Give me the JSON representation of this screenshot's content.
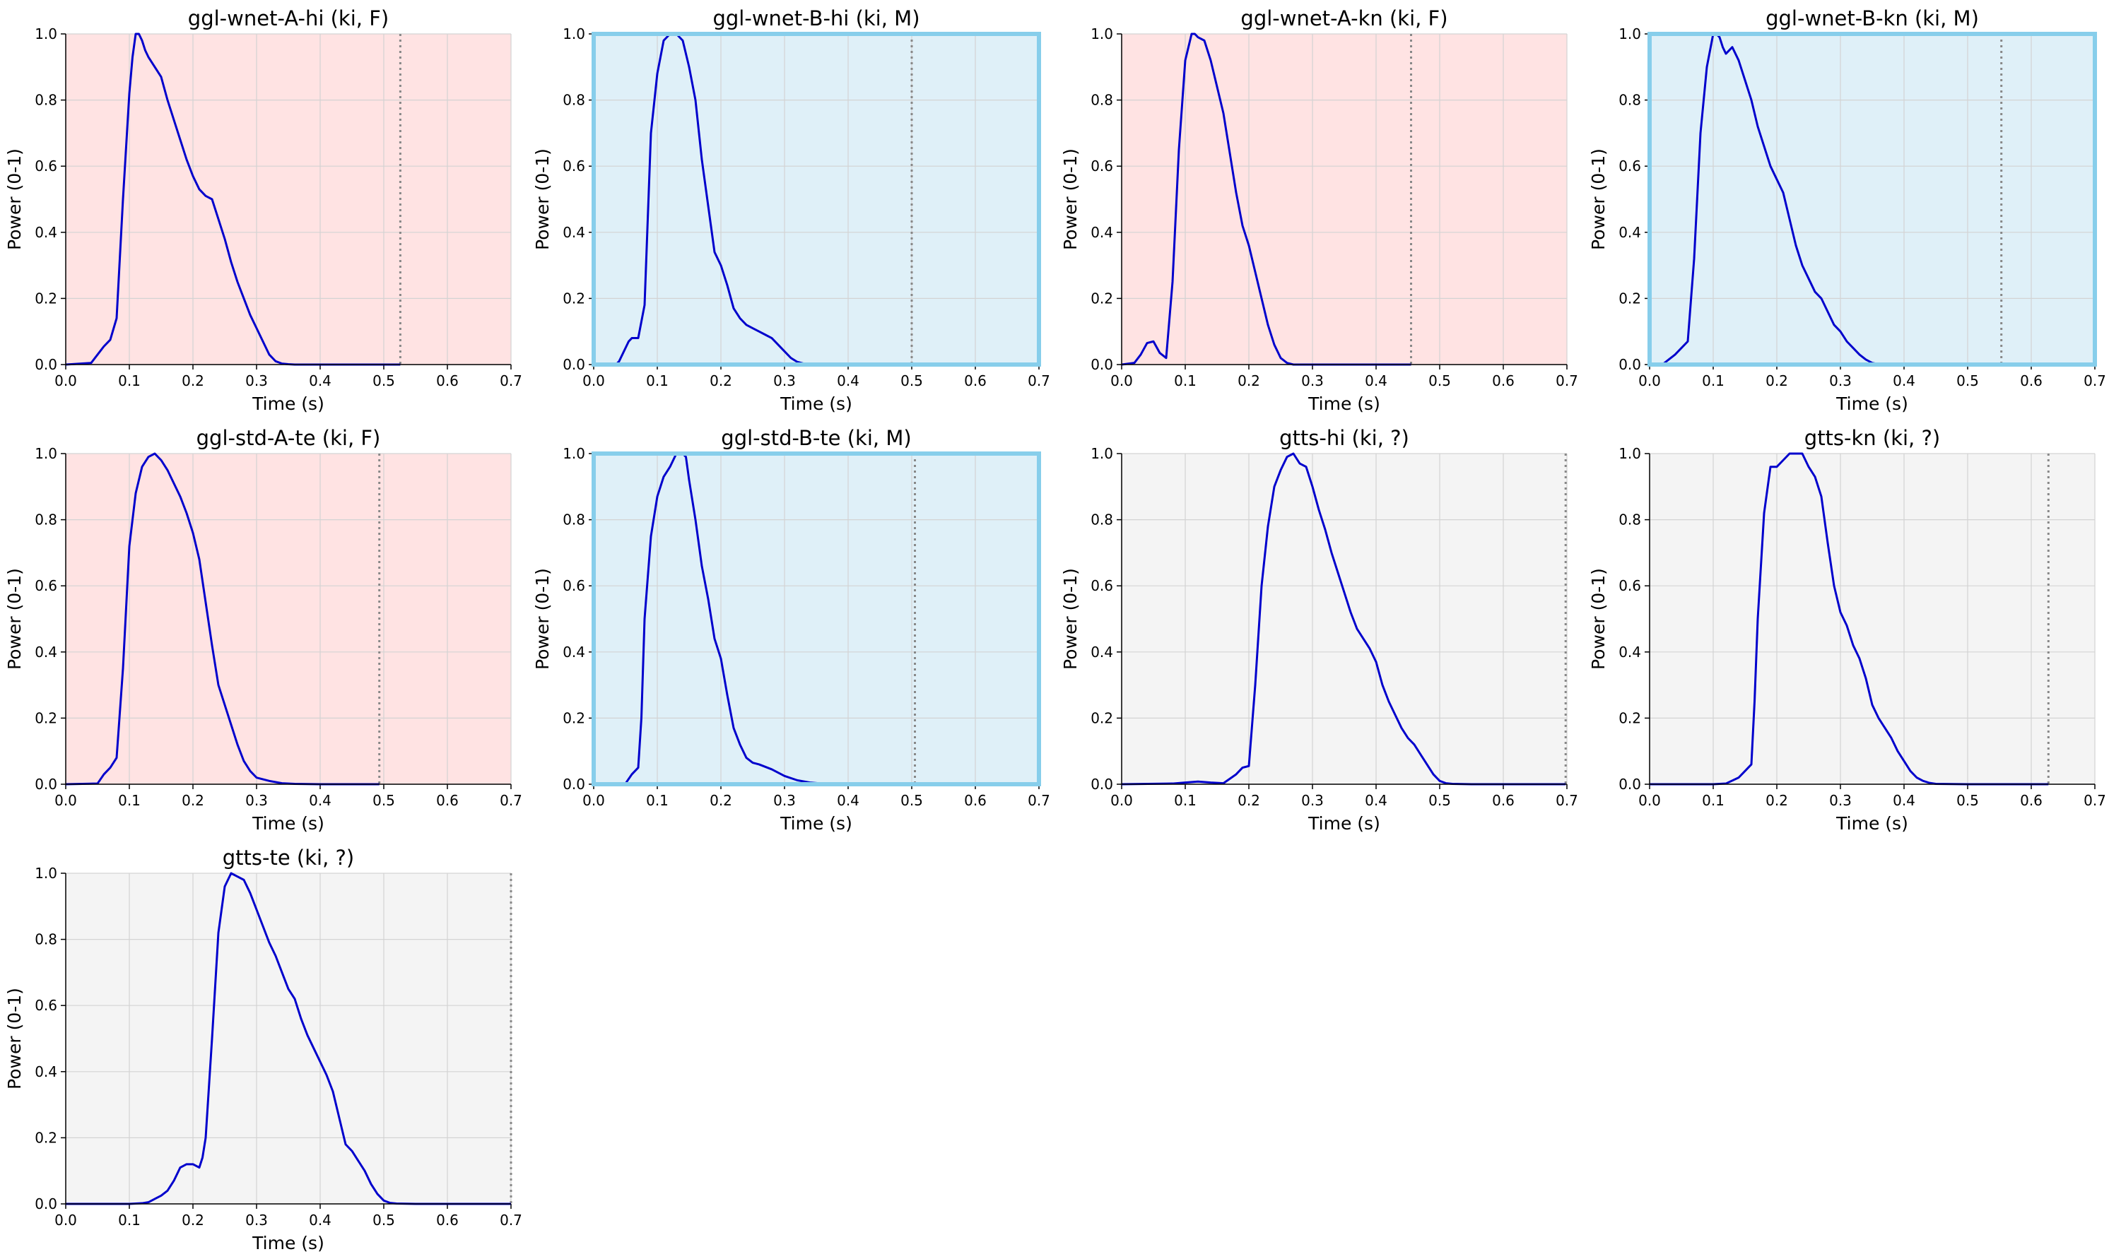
{
  "chart_data": [
    {
      "type": "line",
      "title": "ggl-wnet-A-hi (ki, F)",
      "xlabel": "Time (s)",
      "ylabel": "Power (0-1)",
      "xlim": [
        0,
        0.7
      ],
      "ylim": [
        0,
        1
      ],
      "xticks": [
        "0.0",
        "0.1",
        "0.2",
        "0.3",
        "0.4",
        "0.5",
        "0.6",
        "0.7"
      ],
      "yticks": [
        "0.0",
        "0.2",
        "0.4",
        "0.6",
        "0.8",
        "1.0"
      ],
      "grid": true,
      "background": "#ffe3e3",
      "highlighted": false,
      "end_marker": 0.526,
      "series": [
        {
          "color": "#0000cc",
          "x": [
            0,
            0.04,
            0.05,
            0.06,
            0.07,
            0.08,
            0.09,
            0.1,
            0.105,
            0.11,
            0.115,
            0.12,
            0.125,
            0.13,
            0.14,
            0.15,
            0.16,
            0.17,
            0.18,
            0.19,
            0.2,
            0.21,
            0.22,
            0.23,
            0.24,
            0.25,
            0.26,
            0.27,
            0.28,
            0.29,
            0.3,
            0.31,
            0.32,
            0.33,
            0.34,
            0.35,
            0.36,
            0.38,
            0.4,
            0.45,
            0.526
          ],
          "y": [
            0,
            0.005,
            0.03,
            0.055,
            0.075,
            0.14,
            0.5,
            0.82,
            0.93,
            1.0,
            1.0,
            0.98,
            0.95,
            0.93,
            0.9,
            0.87,
            0.8,
            0.74,
            0.68,
            0.62,
            0.57,
            0.53,
            0.51,
            0.5,
            0.44,
            0.38,
            0.31,
            0.25,
            0.2,
            0.15,
            0.11,
            0.07,
            0.03,
            0.01,
            0.003,
            0.001,
            0,
            0,
            0,
            0,
            0
          ]
        }
      ]
    },
    {
      "type": "line",
      "title": "ggl-wnet-B-hi (ki, M)",
      "xlabel": "Time (s)",
      "ylabel": "Power (0-1)",
      "xlim": [
        0,
        0.7
      ],
      "ylim": [
        0,
        1
      ],
      "xticks": [
        "0.0",
        "0.1",
        "0.2",
        "0.3",
        "0.4",
        "0.5",
        "0.6",
        "0.7"
      ],
      "yticks": [
        "0.0",
        "0.2",
        "0.4",
        "0.6",
        "0.8",
        "1.0"
      ],
      "grid": true,
      "background": "#dff0f8",
      "highlighted": true,
      "end_marker": 0.5,
      "series": [
        {
          "color": "#0000cc",
          "x": [
            0,
            0.035,
            0.04,
            0.05,
            0.055,
            0.06,
            0.07,
            0.08,
            0.09,
            0.1,
            0.11,
            0.12,
            0.13,
            0.14,
            0.15,
            0.16,
            0.17,
            0.18,
            0.19,
            0.2,
            0.21,
            0.22,
            0.23,
            0.24,
            0.25,
            0.26,
            0.27,
            0.28,
            0.29,
            0.3,
            0.31,
            0.32,
            0.33,
            0.34,
            0.35,
            0.4,
            0.45,
            0.5
          ],
          "y": [
            0,
            0,
            0.01,
            0.05,
            0.07,
            0.08,
            0.08,
            0.18,
            0.7,
            0.88,
            0.98,
            1.0,
            1.0,
            0.98,
            0.9,
            0.8,
            0.62,
            0.48,
            0.34,
            0.3,
            0.24,
            0.17,
            0.14,
            0.12,
            0.11,
            0.1,
            0.09,
            0.08,
            0.06,
            0.04,
            0.02,
            0.008,
            0.003,
            0.001,
            0,
            0,
            0,
            0
          ]
        }
      ]
    },
    {
      "type": "line",
      "title": "ggl-wnet-A-kn (ki, F)",
      "xlabel": "Time (s)",
      "ylabel": "Power (0-1)",
      "xlim": [
        0,
        0.7
      ],
      "ylim": [
        0,
        1
      ],
      "xticks": [
        "0.0",
        "0.1",
        "0.2",
        "0.3",
        "0.4",
        "0.5",
        "0.6",
        "0.7"
      ],
      "yticks": [
        "0.0",
        "0.2",
        "0.4",
        "0.6",
        "0.8",
        "1.0"
      ],
      "grid": true,
      "background": "#ffe3e3",
      "highlighted": false,
      "end_marker": 0.455,
      "series": [
        {
          "color": "#0000cc",
          "x": [
            0,
            0.02,
            0.03,
            0.04,
            0.05,
            0.06,
            0.07,
            0.08,
            0.09,
            0.1,
            0.105,
            0.11,
            0.115,
            0.12,
            0.13,
            0.14,
            0.15,
            0.16,
            0.17,
            0.18,
            0.19,
            0.2,
            0.21,
            0.22,
            0.23,
            0.24,
            0.25,
            0.26,
            0.27,
            0.28,
            0.3,
            0.35,
            0.4,
            0.455
          ],
          "y": [
            0,
            0.005,
            0.03,
            0.065,
            0.07,
            0.035,
            0.02,
            0.25,
            0.65,
            0.92,
            0.96,
            1.0,
            1.0,
            0.99,
            0.98,
            0.92,
            0.84,
            0.76,
            0.64,
            0.52,
            0.42,
            0.36,
            0.28,
            0.2,
            0.12,
            0.06,
            0.02,
            0.005,
            0,
            0,
            0,
            0,
            0,
            0
          ]
        }
      ]
    },
    {
      "type": "line",
      "title": "ggl-wnet-B-kn (ki, M)",
      "xlabel": "Time (s)",
      "ylabel": "Power (0-1)",
      "xlim": [
        0,
        0.7
      ],
      "ylim": [
        0,
        1
      ],
      "xticks": [
        "0.0",
        "0.1",
        "0.2",
        "0.3",
        "0.4",
        "0.5",
        "0.6",
        "0.7"
      ],
      "yticks": [
        "0.0",
        "0.2",
        "0.4",
        "0.6",
        "0.8",
        "1.0"
      ],
      "grid": true,
      "background": "#dff0f8",
      "highlighted": true,
      "end_marker": 0.553,
      "series": [
        {
          "color": "#0000cc",
          "x": [
            0,
            0.02,
            0.03,
            0.04,
            0.05,
            0.06,
            0.07,
            0.08,
            0.09,
            0.1,
            0.105,
            0.11,
            0.115,
            0.12,
            0.13,
            0.14,
            0.15,
            0.16,
            0.17,
            0.18,
            0.19,
            0.2,
            0.21,
            0.22,
            0.23,
            0.24,
            0.25,
            0.26,
            0.27,
            0.28,
            0.29,
            0.3,
            0.31,
            0.32,
            0.33,
            0.34,
            0.35,
            0.36,
            0.37,
            0.38,
            0.42,
            0.5,
            0.553
          ],
          "y": [
            0,
            0,
            0.015,
            0.03,
            0.05,
            0.07,
            0.32,
            0.7,
            0.9,
            1.0,
            1.0,
            0.99,
            0.96,
            0.94,
            0.96,
            0.92,
            0.86,
            0.8,
            0.72,
            0.66,
            0.6,
            0.56,
            0.52,
            0.44,
            0.36,
            0.3,
            0.26,
            0.22,
            0.2,
            0.16,
            0.12,
            0.1,
            0.07,
            0.05,
            0.03,
            0.015,
            0.005,
            0.001,
            0,
            0,
            0,
            0,
            0
          ]
        }
      ]
    },
    {
      "type": "line",
      "title": "ggl-std-A-te (ki, F)",
      "xlabel": "Time (s)",
      "ylabel": "Power (0-1)",
      "xlim": [
        0,
        0.7
      ],
      "ylim": [
        0,
        1
      ],
      "xticks": [
        "0.0",
        "0.1",
        "0.2",
        "0.3",
        "0.4",
        "0.5",
        "0.6",
        "0.7"
      ],
      "yticks": [
        "0.0",
        "0.2",
        "0.4",
        "0.6",
        "0.8",
        "1.0"
      ],
      "grid": true,
      "background": "#ffe3e3",
      "highlighted": false,
      "end_marker": 0.493,
      "series": [
        {
          "color": "#0000cc",
          "x": [
            0,
            0.05,
            0.06,
            0.07,
            0.08,
            0.09,
            0.1,
            0.11,
            0.12,
            0.13,
            0.14,
            0.15,
            0.16,
            0.17,
            0.18,
            0.19,
            0.2,
            0.21,
            0.22,
            0.23,
            0.24,
            0.25,
            0.26,
            0.27,
            0.28,
            0.29,
            0.3,
            0.32,
            0.34,
            0.36,
            0.4,
            0.45,
            0.493
          ],
          "y": [
            0,
            0.002,
            0.03,
            0.05,
            0.08,
            0.35,
            0.72,
            0.88,
            0.96,
            0.99,
            1.0,
            0.98,
            0.95,
            0.91,
            0.87,
            0.82,
            0.76,
            0.68,
            0.55,
            0.42,
            0.3,
            0.24,
            0.18,
            0.12,
            0.07,
            0.04,
            0.02,
            0.01,
            0.003,
            0.001,
            0,
            0,
            0
          ]
        }
      ]
    },
    {
      "type": "line",
      "title": "ggl-std-B-te (ki, M)",
      "xlabel": "Time (s)",
      "ylabel": "Power (0-1)",
      "xlim": [
        0,
        0.7
      ],
      "ylim": [
        0,
        1
      ],
      "xticks": [
        "0.0",
        "0.1",
        "0.2",
        "0.3",
        "0.4",
        "0.5",
        "0.6",
        "0.7"
      ],
      "yticks": [
        "0.0",
        "0.2",
        "0.4",
        "0.6",
        "0.8",
        "1.0"
      ],
      "grid": true,
      "background": "#dff0f8",
      "highlighted": true,
      "end_marker": 0.505,
      "series": [
        {
          "color": "#0000cc",
          "x": [
            0,
            0.05,
            0.06,
            0.07,
            0.075,
            0.08,
            0.09,
            0.1,
            0.11,
            0.12,
            0.13,
            0.14,
            0.145,
            0.15,
            0.16,
            0.17,
            0.18,
            0.19,
            0.2,
            0.21,
            0.22,
            0.23,
            0.24,
            0.25,
            0.26,
            0.28,
            0.3,
            0.32,
            0.34,
            0.36,
            0.4,
            0.45,
            0.505
          ],
          "y": [
            0,
            0.002,
            0.03,
            0.05,
            0.2,
            0.5,
            0.75,
            0.87,
            0.93,
            0.96,
            1.0,
            1.0,
            0.99,
            0.92,
            0.8,
            0.66,
            0.56,
            0.44,
            0.38,
            0.27,
            0.17,
            0.12,
            0.08,
            0.065,
            0.06,
            0.045,
            0.025,
            0.012,
            0.005,
            0.002,
            0,
            0,
            0
          ]
        }
      ]
    },
    {
      "type": "line",
      "title": "gtts-hi (ki, ?)",
      "xlabel": "Time (s)",
      "ylabel": "Power (0-1)",
      "xlim": [
        0,
        0.7
      ],
      "ylim": [
        0,
        1
      ],
      "xticks": [
        "0.0",
        "0.1",
        "0.2",
        "0.3",
        "0.4",
        "0.5",
        "0.6",
        "0.7"
      ],
      "yticks": [
        "0.0",
        "0.2",
        "0.4",
        "0.6",
        "0.8",
        "1.0"
      ],
      "grid": true,
      "background": "#f4f4f4",
      "highlighted": false,
      "end_marker": 0.698,
      "series": [
        {
          "color": "#0000cc",
          "x": [
            0,
            0.08,
            0.1,
            0.12,
            0.14,
            0.16,
            0.18,
            0.19,
            0.2,
            0.21,
            0.22,
            0.23,
            0.24,
            0.25,
            0.26,
            0.27,
            0.28,
            0.29,
            0.3,
            0.31,
            0.32,
            0.33,
            0.34,
            0.35,
            0.36,
            0.37,
            0.38,
            0.39,
            0.4,
            0.41,
            0.42,
            0.43,
            0.44,
            0.45,
            0.46,
            0.47,
            0.48,
            0.49,
            0.5,
            0.51,
            0.52,
            0.55,
            0.6,
            0.698
          ],
          "y": [
            0,
            0.002,
            0.005,
            0.008,
            0.005,
            0.003,
            0.03,
            0.05,
            0.055,
            0.3,
            0.6,
            0.78,
            0.9,
            0.95,
            0.99,
            1.0,
            0.97,
            0.96,
            0.9,
            0.83,
            0.77,
            0.7,
            0.64,
            0.58,
            0.52,
            0.47,
            0.44,
            0.41,
            0.37,
            0.3,
            0.25,
            0.21,
            0.17,
            0.14,
            0.12,
            0.09,
            0.06,
            0.03,
            0.01,
            0.003,
            0.001,
            0,
            0,
            0
          ]
        }
      ]
    },
    {
      "type": "line",
      "title": "gtts-kn (ki, ?)",
      "xlabel": "Time (s)",
      "ylabel": "Power (0-1)",
      "xlim": [
        0,
        0.7
      ],
      "ylim": [
        0,
        1
      ],
      "xticks": [
        "0.0",
        "0.1",
        "0.2",
        "0.3",
        "0.4",
        "0.5",
        "0.6",
        "0.7"
      ],
      "yticks": [
        "0.0",
        "0.2",
        "0.4",
        "0.6",
        "0.8",
        "1.0"
      ],
      "grid": true,
      "background": "#f4f4f4",
      "highlighted": false,
      "end_marker": 0.627,
      "series": [
        {
          "color": "#0000cc",
          "x": [
            0,
            0.1,
            0.12,
            0.14,
            0.15,
            0.16,
            0.165,
            0.17,
            0.18,
            0.19,
            0.2,
            0.21,
            0.22,
            0.23,
            0.24,
            0.25,
            0.26,
            0.27,
            0.28,
            0.29,
            0.3,
            0.31,
            0.32,
            0.33,
            0.34,
            0.35,
            0.36,
            0.37,
            0.38,
            0.39,
            0.4,
            0.41,
            0.42,
            0.43,
            0.44,
            0.45,
            0.5,
            0.55,
            0.627
          ],
          "y": [
            0,
            0,
            0.002,
            0.02,
            0.04,
            0.06,
            0.25,
            0.5,
            0.82,
            0.96,
            0.96,
            0.98,
            1.0,
            1.0,
            1.0,
            0.96,
            0.93,
            0.87,
            0.73,
            0.6,
            0.52,
            0.48,
            0.42,
            0.38,
            0.32,
            0.24,
            0.2,
            0.17,
            0.14,
            0.1,
            0.07,
            0.04,
            0.02,
            0.01,
            0.004,
            0.001,
            0,
            0,
            0
          ]
        }
      ]
    },
    {
      "type": "line",
      "title": "gtts-te (ki, ?)",
      "xlabel": "Time (s)",
      "ylabel": "Power (0-1)",
      "xlim": [
        0,
        0.7
      ],
      "ylim": [
        0,
        1
      ],
      "xticks": [
        "0.0",
        "0.1",
        "0.2",
        "0.3",
        "0.4",
        "0.5",
        "0.6",
        "0.7"
      ],
      "yticks": [
        "0.0",
        "0.2",
        "0.4",
        "0.6",
        "0.8",
        "1.0"
      ],
      "grid": true,
      "background": "#f4f4f4",
      "highlighted": false,
      "end_marker": 0.7,
      "series": [
        {
          "color": "#0000cc",
          "x": [
            0,
            0.1,
            0.12,
            0.13,
            0.14,
            0.15,
            0.16,
            0.17,
            0.18,
            0.19,
            0.2,
            0.21,
            0.215,
            0.22,
            0.23,
            0.24,
            0.25,
            0.26,
            0.27,
            0.28,
            0.29,
            0.3,
            0.31,
            0.32,
            0.33,
            0.34,
            0.35,
            0.36,
            0.37,
            0.38,
            0.39,
            0.4,
            0.41,
            0.42,
            0.43,
            0.44,
            0.45,
            0.46,
            0.47,
            0.48,
            0.49,
            0.5,
            0.51,
            0.52,
            0.55,
            0.6,
            0.7
          ],
          "y": [
            0,
            0,
            0.002,
            0.005,
            0.015,
            0.025,
            0.04,
            0.07,
            0.11,
            0.12,
            0.12,
            0.11,
            0.14,
            0.2,
            0.5,
            0.82,
            0.96,
            1.0,
            0.99,
            0.98,
            0.94,
            0.89,
            0.84,
            0.79,
            0.75,
            0.7,
            0.65,
            0.62,
            0.56,
            0.51,
            0.47,
            0.43,
            0.39,
            0.34,
            0.26,
            0.18,
            0.16,
            0.13,
            0.1,
            0.06,
            0.03,
            0.01,
            0.003,
            0.001,
            0,
            0,
            0
          ]
        }
      ]
    }
  ]
}
